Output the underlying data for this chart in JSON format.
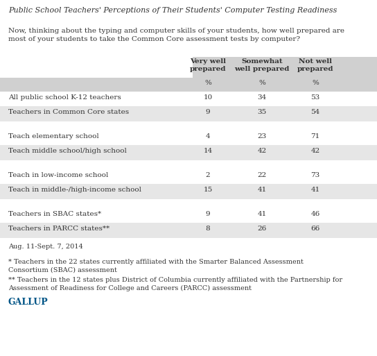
{
  "title": "Public School Teachers' Perceptions of Their Students' Computer Testing Readiness",
  "subtitle": "Now, thinking about the typing and computer skills of your students, how well prepared are\nmost of your students to take the Common Core assessment tests by computer?",
  "col_headers": [
    "Very well\nprepared",
    "Somewhat\nwell prepared",
    "Not well\nprepared"
  ],
  "rows": [
    {
      "label": "All public school K-12 teachers",
      "values": [
        "10",
        "34",
        "53"
      ],
      "shaded": false
    },
    {
      "label": "Teachers in Common Core states",
      "values": [
        "9",
        "35",
        "54"
      ],
      "shaded": true
    },
    {
      "label": null,
      "values": [
        null,
        null,
        null
      ],
      "shaded": false,
      "spacer": true
    },
    {
      "label": "Teach elementary school",
      "values": [
        "4",
        "23",
        "71"
      ],
      "shaded": false
    },
    {
      "label": "Teach middle school/high school",
      "values": [
        "14",
        "42",
        "42"
      ],
      "shaded": true
    },
    {
      "label": null,
      "values": [
        null,
        null,
        null
      ],
      "shaded": false,
      "spacer": true
    },
    {
      "label": "Teach in low-income school",
      "values": [
        "2",
        "22",
        "73"
      ],
      "shaded": false
    },
    {
      "label": "Teach in middle-/high-income school",
      "values": [
        "15",
        "41",
        "41"
      ],
      "shaded": true
    },
    {
      "label": null,
      "values": [
        null,
        null,
        null
      ],
      "shaded": false,
      "spacer": true
    },
    {
      "label": "Teachers in SBAC states*",
      "values": [
        "9",
        "41",
        "46"
      ],
      "shaded": false
    },
    {
      "label": "Teachers in PARCC states**",
      "values": [
        "8",
        "26",
        "66"
      ],
      "shaded": true
    }
  ],
  "date_note": "Aug. 11-Sept. 7, 2014",
  "footnote1": "* Teachers in the 22 states currently affiliated with the Smarter Balanced Assessment\nConsortium (SBAC) assessment",
  "footnote2": "** Teachers in the 12 states plus District of Columbia currently affiliated with the Partnership for\nAssessment of Readiness for College and Careers (PARCC) assessment",
  "brand": "GALLUP",
  "bg_color": "#ffffff",
  "shaded_color": "#e6e6e6",
  "header_shaded_color": "#d0d0d0",
  "text_color": "#333333",
  "title_color": "#333333",
  "brand_color": "#005587",
  "fig_width": 5.44,
  "fig_height": 5.13,
  "dpi": 100
}
